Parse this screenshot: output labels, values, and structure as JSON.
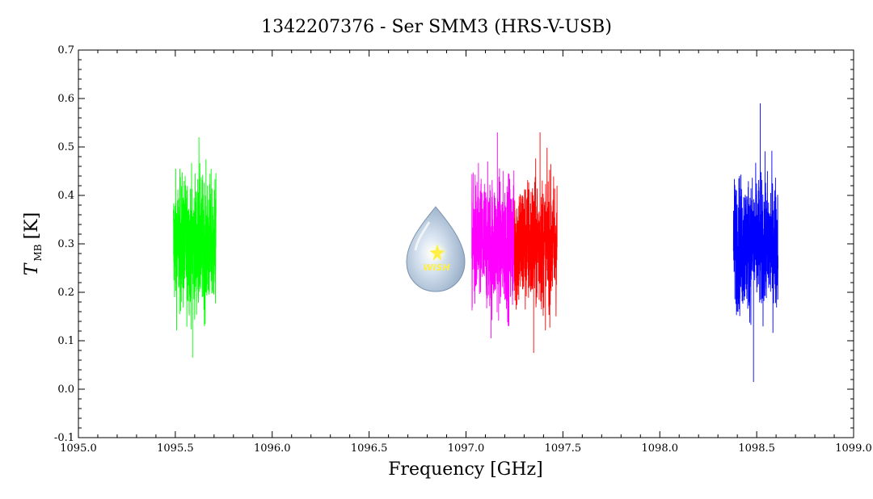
{
  "chart_data": {
    "type": "line",
    "title": "1342207376 - Ser SMM3 (HRS-V-USB)",
    "xlabel": "Frequency [GHz]",
    "ylabel": {
      "symbol": "T",
      "subscript": "MB",
      "unit": "[K]"
    },
    "xlim": [
      1095.0,
      1099.0
    ],
    "ylim": [
      -0.1,
      0.7
    ],
    "x_ticks": [
      1095.0,
      1095.5,
      1096.0,
      1096.5,
      1097.0,
      1097.5,
      1098.0,
      1098.5,
      1099.0
    ],
    "x_tick_labels": [
      "1095.0",
      "1095.5",
      "1096.0",
      "1096.5",
      "1097.0",
      "1097.5",
      "1098.0",
      "1098.5",
      "1099.0"
    ],
    "y_ticks": [
      -0.1,
      0.0,
      0.1,
      0.2,
      0.3,
      0.4,
      0.5,
      0.6,
      0.7
    ],
    "y_tick_labels": [
      "-0.1",
      "0.0",
      "0.1",
      "0.2",
      "0.3",
      "0.4",
      "0.5",
      "0.6",
      "0.7"
    ],
    "grid": false,
    "series": [
      {
        "color": "#00ff00",
        "x_range": [
          1095.49,
          1095.71
        ],
        "mean": 0.3,
        "noise": 0.09,
        "min": 0.065,
        "max": 0.52
      },
      {
        "color": "#ff00ff",
        "x_range": [
          1097.03,
          1097.25
        ],
        "mean": 0.3,
        "noise": 0.09,
        "min": 0.105,
        "max": 0.53
      },
      {
        "color": "#ff0000",
        "x_range": [
          1097.25,
          1097.47
        ],
        "mean": 0.3,
        "noise": 0.09,
        "min": 0.075,
        "max": 0.53
      },
      {
        "color": "#0000ff",
        "x_range": [
          1098.38,
          1098.61
        ],
        "mean": 0.3,
        "noise": 0.09,
        "min": 0.015,
        "max": 0.59
      }
    ],
    "logo": {
      "text": "WISH"
    }
  }
}
